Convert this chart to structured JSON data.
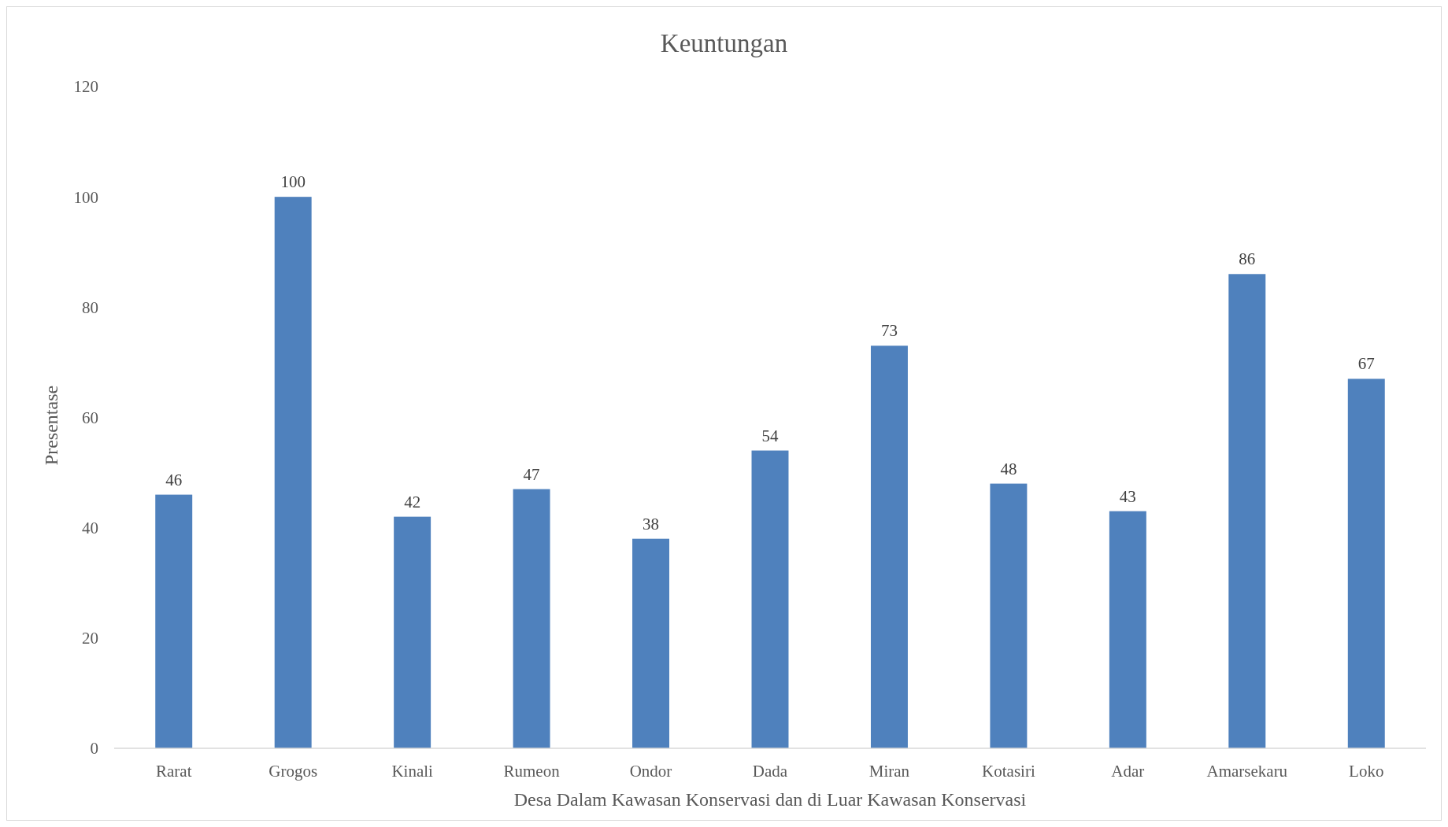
{
  "chart_data": {
    "type": "bar",
    "title": "Keuntungan",
    "xlabel": "Desa Dalam Kawasan Konservasi dan di Luar Kawasan Konservasi",
    "ylabel": "Presentase",
    "categories": [
      "Rarat",
      "Grogos",
      "Kinali",
      "Rumeon",
      "Ondor",
      "Dada",
      "Miran",
      "Kotasiri",
      "Adar",
      "Amarsekaru",
      "Loko"
    ],
    "values": [
      46,
      100,
      42,
      47,
      38,
      54,
      73,
      48,
      43,
      86,
      67
    ],
    "color": "#4f81bd",
    "ylim": [
      0,
      120
    ],
    "yticks": [
      0,
      20,
      40,
      60,
      80,
      100,
      120
    ],
    "grid": false,
    "data_labels": true
  }
}
